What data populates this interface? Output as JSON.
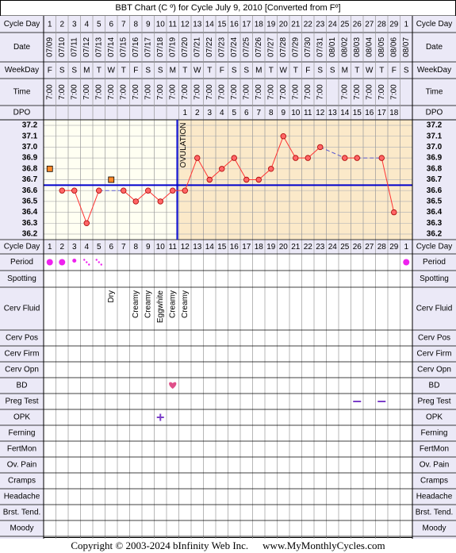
{
  "title": "BBT Chart (C º) for Cycle July 9, 2010  [Converted from Fº]",
  "row_labels": {
    "cycle_day": "Cycle Day",
    "date": "Date",
    "weekday": "WeekDay",
    "time": "Time",
    "dpo": "DPO",
    "period": "Period",
    "spotting": "Spotting",
    "cerv_fluid": "Cerv Fluid",
    "cerv_pos": "Cerv Pos",
    "cerv_firm": "Cerv Firm",
    "cerv_opn": "Cerv Opn",
    "bd": "BD",
    "preg_test": "Preg Test",
    "opk": "OPK",
    "ferning": "Ferning",
    "fertmon": "FertMon",
    "ov_pain": "Ov. Pain",
    "cramps": "Cramps",
    "headache": "Headache",
    "brst_tend": "Brst. Tend.",
    "moody": "Moody"
  },
  "cycle_days": [
    "1",
    "2",
    "3",
    "4",
    "5",
    "6",
    "7",
    "8",
    "9",
    "10",
    "11",
    "12",
    "13",
    "14",
    "15",
    "16",
    "17",
    "18",
    "19",
    "20",
    "21",
    "22",
    "23",
    "24",
    "25",
    "26",
    "27",
    "28",
    "29",
    "1"
  ],
  "dates": [
    "07/09",
    "07/10",
    "07/11",
    "07/12",
    "07/13",
    "07/14",
    "07/15",
    "07/16",
    "07/17",
    "07/18",
    "07/19",
    "07/20",
    "07/21",
    "07/22",
    "07/23",
    "07/24",
    "07/25",
    "07/26",
    "07/27",
    "07/28",
    "07/29",
    "07/30",
    "07/31",
    "08/01",
    "08/02",
    "08/03",
    "08/04",
    "08/05",
    "08/06",
    "08/07"
  ],
  "weekdays": [
    "F",
    "S",
    "S",
    "M",
    "T",
    "W",
    "T",
    "F",
    "S",
    "S",
    "M",
    "T",
    "W",
    "T",
    "F",
    "S",
    "S",
    "M",
    "T",
    "W",
    "T",
    "F",
    "S",
    "S",
    "M",
    "T",
    "W",
    "T",
    "F",
    "S"
  ],
  "times": [
    "7:00",
    "7:00",
    "7:00",
    "7:00",
    "7:00",
    "7:00",
    "7:00",
    "7:00",
    "7:00",
    "7:00",
    "7:00",
    "7:00",
    "7:00",
    "7:00",
    "7:00",
    "7:00",
    "7:00",
    "7:00",
    "7:00",
    "7:00",
    "7:00",
    "7:00",
    "7:00",
    "",
    "7:00",
    "7:00",
    "7:00",
    "7:00",
    "7:00",
    ""
  ],
  "dpo": [
    "",
    "",
    "",
    "",
    "",
    "",
    "",
    "",
    "",
    "",
    "",
    "1",
    "2",
    "3",
    "4",
    "5",
    "6",
    "7",
    "8",
    "9",
    "10",
    "11",
    "12",
    "13",
    "14",
    "15",
    "16",
    "17",
    "18",
    ""
  ],
  "ovulation_label": "OVULATION",
  "cerv_fluid": [
    "",
    "",
    "",
    "",
    "",
    "Dry",
    "",
    "Creamy",
    "Creamy",
    "Eggwhite",
    "Creamy",
    "Creamy",
    "",
    "",
    "",
    "",
    "",
    "",
    "",
    "",
    "",
    "",
    "",
    "",
    "",
    "",
    "",
    "",
    "",
    ""
  ],
  "period": [
    "heavy",
    "heavy",
    "medium",
    "light",
    "light",
    "",
    "",
    "",
    "",
    "",
    "",
    "",
    "",
    "",
    "",
    "",
    "",
    "",
    "",
    "",
    "",
    "",
    "",
    "",
    "",
    "",
    "",
    "",
    "",
    "heavy"
  ],
  "bd_days": [
    11
  ],
  "preg_test_days": [
    26,
    28
  ],
  "opk_days": [
    10
  ],
  "chart_data": {
    "type": "line",
    "title": "BBT Chart (C º) for Cycle July 9, 2010  [Converted from Fº]",
    "x": [
      "07/09",
      "07/10",
      "07/11",
      "07/12",
      "07/13",
      "07/14",
      "07/15",
      "07/16",
      "07/17",
      "07/18",
      "07/19",
      "07/20",
      "07/21",
      "07/22",
      "07/23",
      "07/24",
      "07/25",
      "07/26",
      "07/27",
      "07/28",
      "07/29",
      "07/30",
      "07/31",
      "08/01",
      "08/02",
      "08/03",
      "08/04",
      "08/05",
      "08/06",
      "08/07"
    ],
    "temps": [
      36.8,
      36.6,
      36.6,
      36.3,
      36.6,
      36.7,
      36.6,
      36.5,
      36.6,
      36.5,
      36.6,
      36.6,
      36.9,
      36.7,
      36.8,
      36.9,
      36.7,
      36.7,
      36.8,
      37.1,
      36.9,
      36.9,
      37.0,
      null,
      36.9,
      36.9,
      null,
      36.9,
      36.4,
      null
    ],
    "discarded_days": [
      1,
      6
    ],
    "ylim": [
      36.2,
      37.2
    ],
    "yticks": [
      "37.2",
      "37.1",
      "37.0",
      "36.9",
      "36.8",
      "36.7",
      "36.6",
      "36.5",
      "36.4",
      "36.3",
      "36.2"
    ],
    "coverline": 36.65,
    "ovulation_day": 11,
    "colors": {
      "line": "#ff3333",
      "point_fill": "#ff6666",
      "coverline": "#0000cc",
      "ovulation": "#0000cc",
      "luteal_bg": "#fbe9c9",
      "follicular_bg": "#fffff2",
      "header_bg": "#ebe9f7",
      "discarded": "#ff8a2a"
    }
  },
  "footer": {
    "copyright": "Copyright © 2003-2024 bInfinity Web Inc.",
    "site": "www.MyMonthlyCycles.com"
  }
}
